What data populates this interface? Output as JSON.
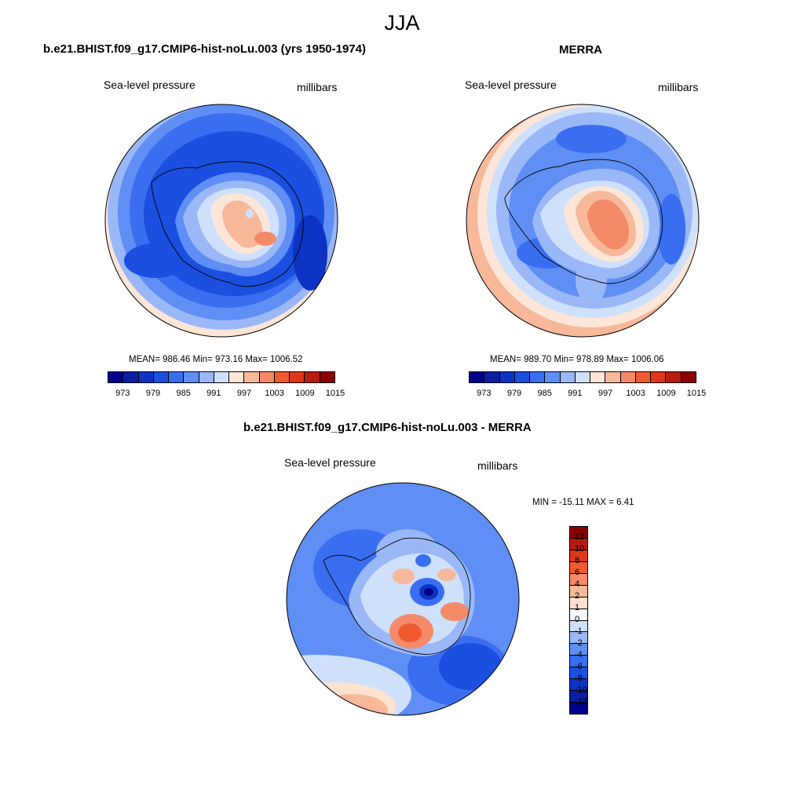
{
  "season": "JJA",
  "panels": [
    {
      "title": "b.e21.BHIST.f09_g17.CMIP6-hist-noLu.003 (yrs 1950-1974)",
      "left_label": "Sea-level pressure",
      "right_label": "millibars",
      "stats": "MEAN= 986.46  Min= 973.16  Max= 1006.52"
    },
    {
      "title": "MERRA",
      "left_label": "Sea-level pressure",
      "right_label": "millibars",
      "stats": "MEAN= 989.70  Min= 978.89  Max= 1006.06"
    },
    {
      "title": "b.e21.BHIST.f09_g17.CMIP6-hist-noLu.003 - MERRA",
      "left_label": "Sea-level pressure",
      "right_label": "millibars",
      "stats": "MIN = -15.11 MAX =   6.41"
    }
  ],
  "colorbar_abs": {
    "tick_labels": [
      "973",
      "979",
      "985",
      "991",
      "997",
      "1003",
      "1009",
      "1015"
    ],
    "colors": [
      "#00008b",
      "#0a1ea0",
      "#0c33c2",
      "#1a4fe0",
      "#3a6ef0",
      "#5f8ef4",
      "#9ab8f7",
      "#cfe0fb",
      "#fde6d8",
      "#f8b89a",
      "#f48a68",
      "#f05a30",
      "#e0361a",
      "#b81b0e",
      "#8b0000"
    ]
  },
  "colorbar_diff": {
    "tick_labels": [
      "12",
      "10",
      "8",
      "6",
      "4",
      "2",
      "1",
      "0",
      "-1",
      "-2",
      "-4",
      "-6",
      "-8",
      "-10",
      "-12"
    ],
    "colors": [
      "#8b0000",
      "#b81b0e",
      "#e0361a",
      "#f05a30",
      "#f48a68",
      "#f8b89a",
      "#fde2cf",
      "#f4f7fb",
      "#cfe0fb",
      "#9ab8f7",
      "#5f8ef4",
      "#3a6ef0",
      "#1a4fe0",
      "#0c33c2",
      "#0a1ea0",
      "#00008b"
    ]
  }
}
